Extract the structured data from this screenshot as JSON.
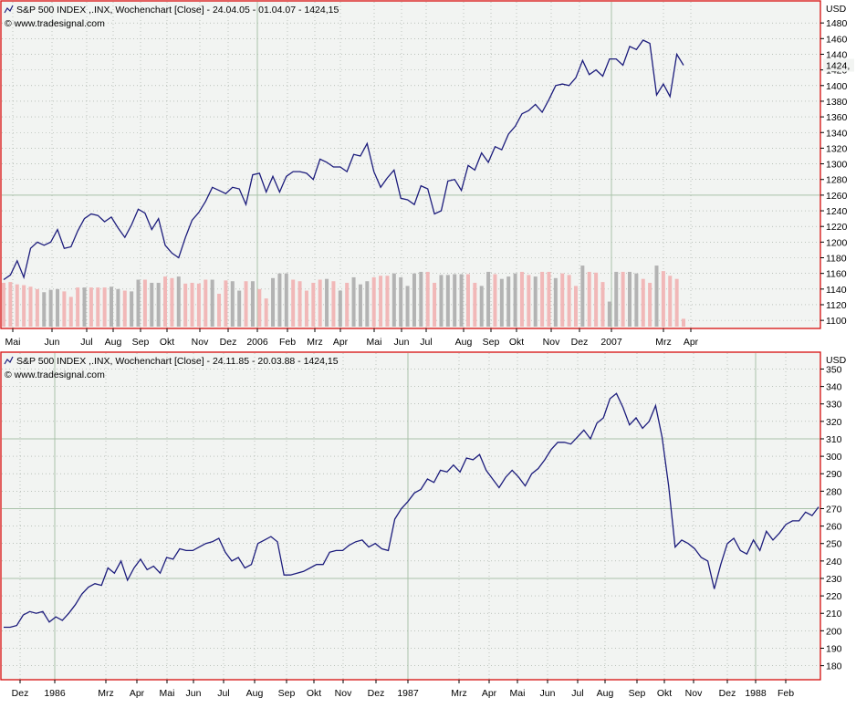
{
  "colors": {
    "frame": "#d81818",
    "background": "#f2f4f2",
    "line": "#1c1c7c",
    "volume_up": "#f1b8b8",
    "volume_down": "#b3b3b3"
  },
  "icons": {
    "header": "chart-line-icon"
  },
  "chart_data": [
    {
      "type": "line",
      "header": "S&P 500 INDEX ,.INX, Wochenchart [Close] - 24.04.05 - 01.04.07 - 1424,15",
      "watermark": "© www.tradesignal.com",
      "unit": "USD",
      "last_value_label": "1424,",
      "y_ticks": [
        1100,
        1120,
        1140,
        1160,
        1180,
        1200,
        1220,
        1240,
        1260,
        1280,
        1300,
        1320,
        1340,
        1360,
        1380,
        1400,
        1420,
        1440,
        1460,
        1480
      ],
      "x_labels": [
        "Mai",
        "Jun",
        "Jul",
        "Aug",
        "Sep",
        "Okt",
        "Nov",
        "Dez",
        "2006",
        "Feb",
        "Mrz",
        "Apr",
        "Mai",
        "Jun",
        "Jul",
        "Aug",
        "Sep",
        "Okt",
        "Nov",
        "Dez",
        "2007",
        "Mrz",
        "Apr"
      ],
      "ylim": [
        1092,
        1500
      ],
      "major_gridlines_y": [
        1260,
        1424
      ],
      "major_gridlines_x": [
        "2006",
        "2007"
      ],
      "series": [
        {
          "values": [
            1152,
            1158,
            1176,
            1155,
            1192,
            1200,
            1196,
            1200,
            1216,
            1192,
            1194,
            1214,
            1230,
            1236,
            1234,
            1226,
            1232,
            1218,
            1206,
            1222,
            1242,
            1237,
            1216,
            1230,
            1196,
            1186,
            1180,
            1206,
            1228,
            1238,
            1252,
            1270,
            1266,
            1262,
            1270,
            1268,
            1248,
            1286,
            1288,
            1264,
            1284,
            1264,
            1284,
            1290,
            1290,
            1288,
            1280,
            1306,
            1302,
            1296,
            1296,
            1290,
            1312,
            1310,
            1326,
            1290,
            1270,
            1282,
            1292,
            1256,
            1254,
            1248,
            1272,
            1268,
            1236,
            1240,
            1278,
            1280,
            1266,
            1298,
            1292,
            1314,
            1302,
            1322,
            1318,
            1338,
            1348,
            1364,
            1368,
            1376,
            1366,
            1382,
            1400,
            1402,
            1400,
            1410,
            1432,
            1414,
            1420,
            1412,
            1434,
            1434,
            1426,
            1450,
            1446,
            1458,
            1454,
            1388,
            1402,
            1386,
            1440,
            1426
          ]
        }
      ],
      "volume": {
        "colors": [
          "up",
          "up",
          "up",
          "up",
          "up",
          "up",
          "down",
          "down",
          "down",
          "up",
          "up",
          "up",
          "down",
          "up",
          "up",
          "up",
          "down",
          "down",
          "up",
          "down",
          "down",
          "up",
          "down",
          "down",
          "up",
          "up",
          "down",
          "up",
          "up",
          "up",
          "up",
          "down",
          "up",
          "up",
          "down",
          "down",
          "up",
          "down",
          "up",
          "up",
          "down",
          "down",
          "down",
          "up",
          "up",
          "up",
          "up",
          "up",
          "down",
          "up",
          "down",
          "up",
          "down",
          "down",
          "down",
          "up",
          "up",
          "up",
          "down",
          "down",
          "down",
          "down",
          "down",
          "up",
          "up",
          "down",
          "down",
          "down",
          "down",
          "up",
          "up",
          "down",
          "down",
          "up",
          "down",
          "down",
          "down",
          "up",
          "up",
          "down",
          "up",
          "up",
          "down",
          "up",
          "up",
          "up",
          "down",
          "up",
          "up",
          "up",
          "down",
          "down",
          "up",
          "down",
          "down",
          "up",
          "up",
          "down",
          "up",
          "up",
          "up",
          "up"
        ],
        "values": [
          1148,
          1149,
          1146,
          1145,
          1143,
          1140,
          1136,
          1139,
          1140,
          1137,
          1130,
          1142,
          1142,
          1142,
          1142,
          1142,
          1143,
          1140,
          1138,
          1137,
          1152,
          1152,
          1148,
          1148,
          1156,
          1154,
          1156,
          1147,
          1148,
          1147,
          1152,
          1152,
          1134,
          1151,
          1150,
          1138,
          1150,
          1150,
          1140,
          1128,
          1154,
          1160,
          1160,
          1152,
          1150,
          1138,
          1148,
          1152,
          1153,
          1150,
          1138,
          1148,
          1155,
          1146,
          1150,
          1155,
          1157,
          1157,
          1160,
          1155,
          1144,
          1160,
          1162,
          1162,
          1148,
          1158,
          1158,
          1159,
          1159,
          1159,
          1148,
          1144,
          1162,
          1159,
          1153,
          1156,
          1160,
          1162,
          1158,
          1156,
          1162,
          1162,
          1154,
          1160,
          1158,
          1144,
          1170,
          1162,
          1161,
          1149,
          1124,
          1162,
          1162,
          1162,
          1160,
          1153,
          1148,
          1170,
          1163,
          1157,
          1153,
          1102
        ]
      }
    },
    {
      "type": "line",
      "header": "S&P 500 INDEX ,.INX, Wochenchart [Close] - 24.11.85 - 20.03.88 - 1424,15",
      "watermark": "© www.tradesignal.com",
      "unit": "USD",
      "y_ticks": [
        180,
        190,
        200,
        210,
        220,
        230,
        240,
        250,
        260,
        270,
        280,
        290,
        300,
        310,
        320,
        330,
        340,
        350
      ],
      "x_labels": [
        "Dez",
        "1986",
        "Mrz",
        "Apr",
        "Mai",
        "Jun",
        "Jul",
        "Aug",
        "Sep",
        "Okt",
        "Nov",
        "Dez",
        "1987",
        "Mrz",
        "Apr",
        "Mai",
        "Jun",
        "Jul",
        "Aug",
        "Sep",
        "Okt",
        "Nov",
        "Dez",
        "1988",
        "Feb"
      ],
      "ylim": [
        173,
        356
      ],
      "major_gridlines_y": [
        230,
        270,
        310
      ],
      "major_gridlines_x": [
        "1986",
        "1987",
        "1988"
      ],
      "series": [
        {
          "values": [
            202,
            202,
            203,
            209,
            211,
            210,
            211,
            205,
            208,
            206,
            210,
            215,
            221,
            225,
            227,
            226,
            236,
            233,
            240,
            229,
            236,
            241,
            235,
            237,
            233,
            242,
            241,
            247,
            246,
            246,
            248,
            250,
            251,
            253,
            245,
            240,
            242,
            236,
            238,
            250,
            252,
            254,
            251,
            232,
            232,
            233,
            234,
            236,
            238,
            238,
            245,
            246,
            246,
            249,
            251,
            252,
            248,
            250,
            247,
            246,
            264,
            270,
            274,
            279,
            281,
            287,
            285,
            292,
            291,
            295,
            291,
            299,
            298,
            301,
            292,
            287,
            282,
            288,
            292,
            288,
            283,
            290,
            293,
            298,
            304,
            308,
            308,
            307,
            311,
            315,
            310,
            319,
            322,
            333,
            336,
            328,
            318,
            322,
            316,
            320,
            329,
            311,
            283,
            248,
            252,
            250,
            247,
            242,
            240,
            224,
            238,
            250,
            253,
            246,
            244,
            252,
            246,
            257,
            252,
            256,
            261,
            263,
            263,
            268,
            266,
            271
          ]
        }
      ]
    }
  ]
}
